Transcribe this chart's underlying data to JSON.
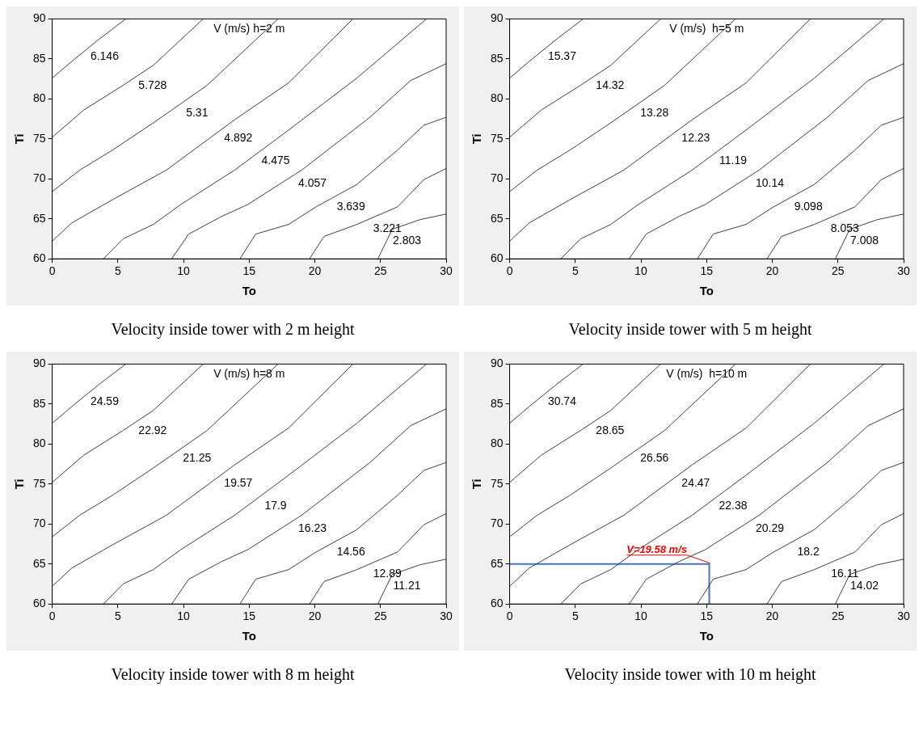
{
  "chart_data": [
    {
      "type": "line",
      "title": "V (m/s) h=2 m",
      "xlabel": "To",
      "ylabel": "Ti",
      "xlim": [
        0,
        30
      ],
      "ylim": [
        60,
        90
      ],
      "xticks": [
        0,
        5,
        10,
        15,
        20,
        25,
        30
      ],
      "yticks": [
        60,
        65,
        70,
        75,
        80,
        85,
        90
      ],
      "grid": false,
      "legend": false,
      "series": [
        {
          "name": "6.146",
          "color": "#404040",
          "x": [
            0,
            1.5,
            3.6,
            5.6
          ],
          "values": [
            82.6,
            84.7,
            87.5,
            90
          ]
        },
        {
          "name": "5.728",
          "color": "#404040",
          "x": [
            0,
            2.4,
            5.4,
            7.7,
            11.5
          ],
          "values": [
            75.2,
            78.6,
            81.7,
            84.2,
            90
          ]
        },
        {
          "name": "5.31",
          "color": "#404040",
          "x": [
            0,
            2.1,
            4.6,
            7.7,
            11.8,
            17.2
          ],
          "values": [
            68.4,
            71.1,
            73.6,
            77.0,
            81.7,
            90
          ]
        },
        {
          "name": "4.892",
          "color": "#404040",
          "x": [
            0,
            1.5,
            4.6,
            8.7,
            13.9,
            18.0,
            22.9
          ],
          "values": [
            62.2,
            64.5,
            67.4,
            71.1,
            77.4,
            82.0,
            90
          ]
        },
        {
          "name": "4.475",
          "color": "#404040",
          "x": [
            3.9,
            5.4,
            7.7,
            9.8,
            13.9,
            18.0,
            23.2,
            28.5
          ],
          "values": [
            60,
            62.5,
            64.3,
            66.8,
            71.1,
            76.1,
            82.6,
            90
          ]
        },
        {
          "name": "4.057",
          "color": "#404040",
          "x": [
            9.1,
            10.4,
            12.9,
            14.9,
            19.0,
            24.2,
            27.3,
            30
          ],
          "values": [
            60,
            63.1,
            65.3,
            66.8,
            71.1,
            77.7,
            82.3,
            84.4
          ]
        },
        {
          "name": "3.639",
          "color": "#404040",
          "x": [
            14.3,
            15.5,
            18.0,
            20.1,
            23.2,
            26.3,
            28.3,
            30
          ],
          "values": [
            60,
            63.1,
            64.3,
            66.5,
            69.3,
            73.6,
            76.7,
            77.7
          ]
        },
        {
          "name": "3.221",
          "color": "#404040",
          "x": [
            19.6,
            20.7,
            23.2,
            26.3,
            28.3,
            30
          ],
          "values": [
            60,
            62.8,
            64.3,
            66.5,
            69.9,
            71.3
          ]
        },
        {
          "name": "2.803",
          "color": "#404040",
          "x": [
            24.8,
            25.9,
            28.0,
            30
          ],
          "values": [
            60,
            63.7,
            64.9,
            65.6
          ]
        }
      ],
      "annotations": [
        "Velocity inside tower with 2 m height"
      ]
    },
    {
      "type": "line",
      "title": "V (m/s)  h=5 m",
      "xlabel": "To",
      "ylabel": "Ti",
      "xlim": [
        0,
        30
      ],
      "ylim": [
        60,
        90
      ],
      "xticks": [
        0,
        5,
        10,
        15,
        20,
        25,
        30
      ],
      "yticks": [
        60,
        65,
        70,
        75,
        80,
        85,
        90
      ],
      "grid": false,
      "legend": false,
      "series": [
        {
          "name": "15.37",
          "color": "#404040",
          "x": [
            0,
            1.5,
            3.6,
            5.6
          ],
          "values": [
            82.6,
            84.7,
            87.5,
            90
          ]
        },
        {
          "name": "14.32",
          "color": "#404040",
          "x": [
            0,
            2.4,
            5.4,
            7.7,
            11.5
          ],
          "values": [
            75.2,
            78.6,
            81.7,
            84.2,
            90
          ]
        },
        {
          "name": "13.28",
          "color": "#404040",
          "x": [
            0,
            2.1,
            4.6,
            7.7,
            11.8,
            17.2
          ],
          "values": [
            68.4,
            71.1,
            73.6,
            77.0,
            81.7,
            90
          ]
        },
        {
          "name": "12.23",
          "color": "#404040",
          "x": [
            0,
            1.5,
            4.6,
            8.7,
            13.9,
            18.0,
            22.9
          ],
          "values": [
            62.2,
            64.5,
            67.4,
            71.1,
            77.4,
            82.0,
            90
          ]
        },
        {
          "name": "11.19",
          "color": "#404040",
          "x": [
            3.9,
            5.4,
            7.7,
            9.8,
            13.9,
            18.0,
            23.2,
            28.5
          ],
          "values": [
            60,
            62.5,
            64.3,
            66.8,
            71.1,
            76.1,
            82.6,
            90
          ]
        },
        {
          "name": "10.14",
          "color": "#404040",
          "x": [
            9.1,
            10.4,
            12.9,
            14.9,
            19.0,
            24.2,
            27.3,
            30
          ],
          "values": [
            60,
            63.1,
            65.3,
            66.8,
            71.1,
            77.7,
            82.3,
            84.4
          ]
        },
        {
          "name": "9.098",
          "color": "#404040",
          "x": [
            14.3,
            15.5,
            18.0,
            20.1,
            23.2,
            26.3,
            28.3,
            30
          ],
          "values": [
            60,
            63.1,
            64.3,
            66.5,
            69.3,
            73.6,
            76.7,
            77.7
          ]
        },
        {
          "name": "8.053",
          "color": "#404040",
          "x": [
            19.6,
            20.7,
            23.2,
            26.3,
            28.3,
            30
          ],
          "values": [
            60,
            62.8,
            64.3,
            66.5,
            69.9,
            71.3
          ]
        },
        {
          "name": "7.008",
          "color": "#404040",
          "x": [
            24.8,
            25.9,
            28.0,
            30
          ],
          "values": [
            60,
            63.7,
            64.9,
            65.6
          ]
        }
      ],
      "annotations": [
        "Velocity inside tower with 5 m height"
      ]
    },
    {
      "type": "line",
      "title": "V (m/s) h=8 m",
      "xlabel": "To",
      "ylabel": "Ti",
      "xlim": [
        0,
        30
      ],
      "ylim": [
        60,
        90
      ],
      "xticks": [
        0,
        5,
        10,
        15,
        20,
        25,
        30
      ],
      "yticks": [
        60,
        65,
        70,
        75,
        80,
        85,
        90
      ],
      "grid": false,
      "legend": false,
      "series": [
        {
          "name": "24.59",
          "color": "#404040",
          "x": [
            0,
            1.5,
            3.6,
            5.6
          ],
          "values": [
            82.6,
            84.7,
            87.5,
            90
          ]
        },
        {
          "name": "22.92",
          "color": "#404040",
          "x": [
            0,
            2.4,
            5.4,
            7.7,
            11.5
          ],
          "values": [
            75.2,
            78.6,
            81.7,
            84.2,
            90
          ]
        },
        {
          "name": "21.25",
          "color": "#404040",
          "x": [
            0,
            2.1,
            4.6,
            7.7,
            11.8,
            17.2
          ],
          "values": [
            68.4,
            71.1,
            73.6,
            77.0,
            81.7,
            90
          ]
        },
        {
          "name": "19.57",
          "color": "#404040",
          "x": [
            0,
            1.5,
            4.6,
            8.7,
            13.9,
            18.0,
            22.9
          ],
          "values": [
            62.2,
            64.5,
            67.4,
            71.1,
            77.4,
            82.0,
            90
          ]
        },
        {
          "name": "17.9",
          "color": "#404040",
          "x": [
            3.9,
            5.4,
            7.7,
            9.8,
            13.9,
            18.0,
            23.2,
            28.5
          ],
          "values": [
            60,
            62.5,
            64.3,
            66.8,
            71.1,
            76.1,
            82.6,
            90
          ]
        },
        {
          "name": "16.23",
          "color": "#404040",
          "x": [
            9.1,
            10.4,
            12.9,
            14.9,
            19.0,
            24.2,
            27.3,
            30
          ],
          "values": [
            60,
            63.1,
            65.3,
            66.8,
            71.1,
            77.7,
            82.3,
            84.4
          ]
        },
        {
          "name": "14.56",
          "color": "#404040",
          "x": [
            14.3,
            15.5,
            18.0,
            20.1,
            23.2,
            26.3,
            28.3,
            30
          ],
          "values": [
            60,
            63.1,
            64.3,
            66.5,
            69.3,
            73.6,
            76.7,
            77.7
          ]
        },
        {
          "name": "12.89",
          "color": "#404040",
          "x": [
            19.6,
            20.7,
            23.2,
            26.3,
            28.3,
            30
          ],
          "values": [
            60,
            62.8,
            64.3,
            66.5,
            69.9,
            71.3
          ]
        },
        {
          "name": "11.21",
          "color": "#404040",
          "x": [
            24.8,
            25.9,
            28.0,
            30
          ],
          "values": [
            60,
            63.7,
            64.9,
            65.6
          ]
        }
      ],
      "annotations": [
        "Velocity inside tower with 8 m height"
      ]
    },
    {
      "type": "line",
      "title": "V (m/s)  h=10 m",
      "xlabel": "To",
      "ylabel": "Ti",
      "xlim": [
        0,
        30
      ],
      "ylim": [
        60,
        90
      ],
      "xticks": [
        0,
        5,
        10,
        15,
        20,
        25,
        30
      ],
      "yticks": [
        60,
        65,
        70,
        75,
        80,
        85,
        90
      ],
      "grid": false,
      "legend": false,
      "series": [
        {
          "name": "30.74",
          "color": "#404040",
          "x": [
            0,
            1.5,
            3.6,
            5.6
          ],
          "values": [
            82.6,
            84.7,
            87.5,
            90
          ]
        },
        {
          "name": "28.65",
          "color": "#404040",
          "x": [
            0,
            2.4,
            5.4,
            7.7,
            11.5
          ],
          "values": [
            75.2,
            78.6,
            81.7,
            84.2,
            90
          ]
        },
        {
          "name": "26.56",
          "color": "#404040",
          "x": [
            0,
            2.1,
            4.6,
            7.7,
            11.8,
            17.2
          ],
          "values": [
            68.4,
            71.1,
            73.6,
            77.0,
            81.7,
            90
          ]
        },
        {
          "name": "24.47",
          "color": "#404040",
          "x": [
            0,
            1.5,
            4.6,
            8.7,
            13.9,
            18.0,
            22.9
          ],
          "values": [
            62.2,
            64.5,
            67.4,
            71.1,
            77.4,
            82.0,
            90
          ]
        },
        {
          "name": "22.38",
          "color": "#404040",
          "x": [
            3.9,
            5.4,
            7.7,
            9.8,
            13.9,
            18.0,
            23.2,
            28.5
          ],
          "values": [
            60,
            62.5,
            64.3,
            66.8,
            71.1,
            76.1,
            82.6,
            90
          ]
        },
        {
          "name": "20.29",
          "color": "#404040",
          "x": [
            9.1,
            10.4,
            12.9,
            14.9,
            19.0,
            24.2,
            27.3,
            30
          ],
          "values": [
            60,
            63.1,
            65.3,
            66.8,
            71.1,
            77.7,
            82.3,
            84.4
          ]
        },
        {
          "name": "18.2",
          "color": "#404040",
          "x": [
            14.3,
            15.5,
            18.0,
            20.1,
            23.2,
            26.3,
            28.3,
            30
          ],
          "values": [
            60,
            63.1,
            64.3,
            66.5,
            69.3,
            73.6,
            76.7,
            77.7
          ]
        },
        {
          "name": "16.11",
          "color": "#404040",
          "x": [
            19.6,
            20.7,
            23.2,
            26.3,
            28.3,
            30
          ],
          "values": [
            60,
            62.8,
            64.3,
            66.5,
            69.9,
            71.3
          ]
        },
        {
          "name": "14.02",
          "color": "#404040",
          "x": [
            24.8,
            25.9,
            28.0,
            30
          ],
          "values": [
            60,
            63.7,
            64.9,
            65.6
          ]
        },
        {
          "color": "#4472c4",
          "x": [
            0,
            15.2,
            15.2
          ],
          "values": [
            65,
            65,
            60
          ]
        }
      ],
      "annotations": [
        {
          "text": "V=19.58 m/s",
          "x": 15.2,
          "y": 65
        },
        "Velocity inside tower with 10 m height"
      ]
    }
  ]
}
